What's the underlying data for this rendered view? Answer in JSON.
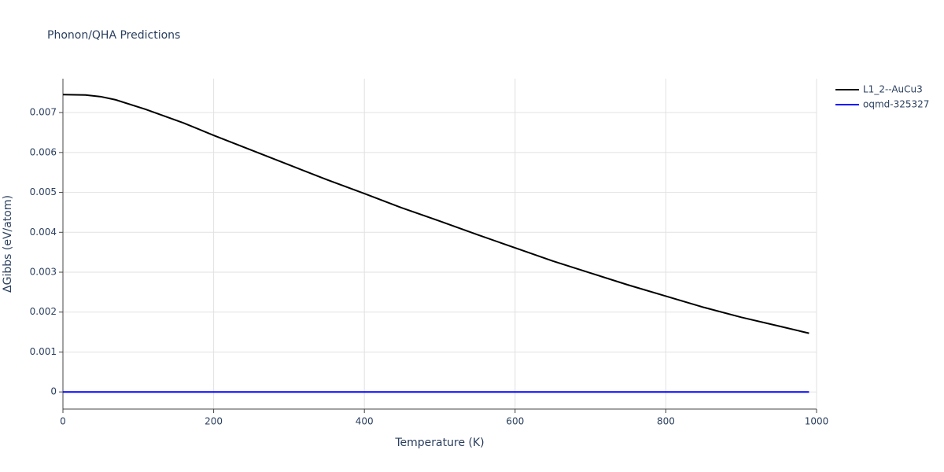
{
  "chart_data": {
    "type": "line",
    "title": "Phonon/QHA Predictions",
    "x_label": "Temperature (K)",
    "y_label": "ΔGibbs (eV/atom)",
    "x": [
      0,
      30,
      50,
      70,
      110,
      160,
      200,
      250,
      300,
      350,
      400,
      450,
      500,
      550,
      600,
      650,
      700,
      750,
      800,
      850,
      900,
      950,
      990
    ],
    "series": [
      {
        "name": "L1_2--AuCu3",
        "color": "#000000",
        "values": [
          0.00745,
          0.00744,
          0.0074,
          0.00732,
          0.00708,
          0.00674,
          0.00643,
          0.00606,
          0.00569,
          0.00532,
          0.00497,
          0.00461,
          0.00428,
          0.00394,
          0.00361,
          0.00328,
          0.00298,
          0.00268,
          0.0024,
          0.00212,
          0.00187,
          0.00165,
          0.00147
        ]
      },
      {
        "name": "oqmd-325327",
        "color": "#0000ff",
        "values": [
          0,
          0,
          0,
          0,
          0,
          0,
          0,
          0,
          0,
          0,
          0,
          0,
          0,
          0,
          0,
          0,
          0,
          0,
          0,
          0,
          0,
          0,
          0
        ]
      }
    ],
    "xlim": [
      0,
      1000
    ],
    "xticks": [
      0,
      200,
      400,
      600,
      800,
      1000
    ],
    "ylim": [
      -0.00043,
      0.00785
    ],
    "yticks": [
      0,
      0.001,
      0.002,
      0.003,
      0.004,
      0.005,
      0.006,
      0.007
    ],
    "grid": true,
    "legend": "right"
  }
}
